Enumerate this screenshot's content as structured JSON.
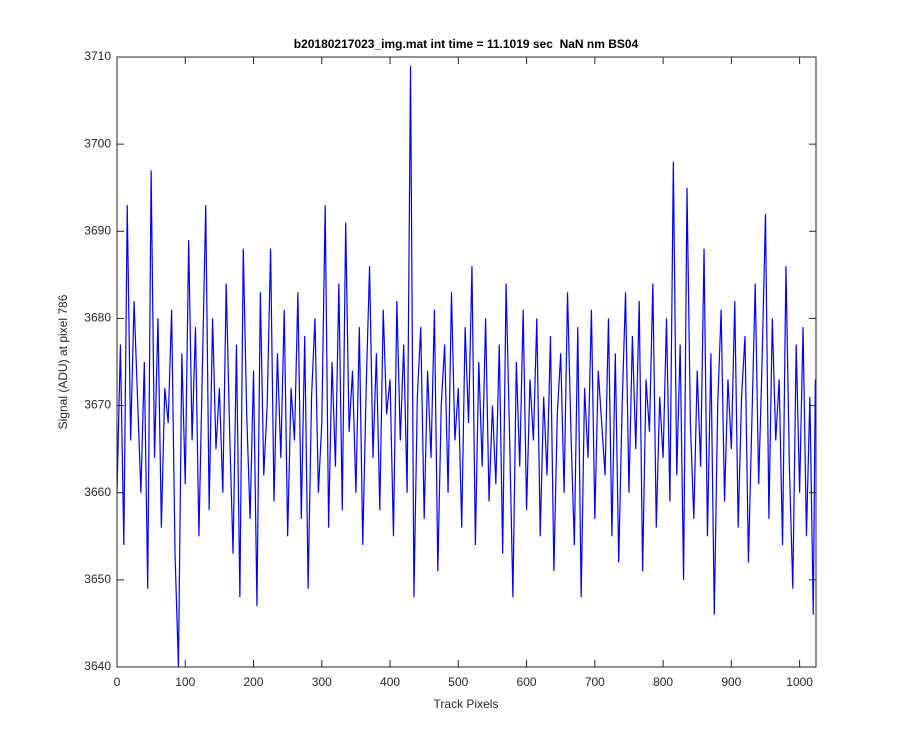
{
  "chart_data": {
    "type": "line",
    "title": "b20180217023_img.mat int time = 11.1019 sec  NaN nm BS04",
    "xlabel": "Track Pixels",
    "ylabel": "Signal (ADU) at pixel 786",
    "x": [
      0,
      5,
      10,
      15,
      20,
      25,
      30,
      35,
      40,
      45,
      50,
      55,
      60,
      65,
      70,
      75,
      80,
      85,
      90,
      95,
      100,
      105,
      110,
      115,
      120,
      125,
      130,
      135,
      140,
      145,
      150,
      155,
      160,
      165,
      170,
      175,
      180,
      185,
      190,
      195,
      200,
      205,
      210,
      215,
      220,
      225,
      230,
      235,
      240,
      245,
      250,
      255,
      260,
      265,
      270,
      275,
      280,
      285,
      290,
      295,
      300,
      305,
      310,
      315,
      320,
      325,
      330,
      335,
      340,
      345,
      350,
      355,
      360,
      365,
      370,
      375,
      380,
      385,
      390,
      395,
      400,
      405,
      410,
      415,
      420,
      425,
      430,
      435,
      440,
      445,
      450,
      455,
      460,
      465,
      470,
      475,
      480,
      485,
      490,
      495,
      500,
      505,
      510,
      515,
      520,
      525,
      530,
      535,
      540,
      545,
      550,
      555,
      560,
      565,
      570,
      575,
      580,
      585,
      590,
      595,
      600,
      605,
      610,
      615,
      620,
      625,
      630,
      635,
      640,
      645,
      650,
      655,
      660,
      665,
      670,
      675,
      680,
      685,
      690,
      695,
      700,
      705,
      710,
      715,
      720,
      725,
      730,
      735,
      740,
      745,
      750,
      755,
      760,
      765,
      770,
      775,
      780,
      785,
      790,
      795,
      800,
      805,
      810,
      815,
      820,
      825,
      830,
      835,
      840,
      845,
      850,
      855,
      860,
      865,
      870,
      875,
      880,
      885,
      890,
      895,
      900,
      905,
      910,
      915,
      920,
      925,
      930,
      935,
      940,
      945,
      950,
      955,
      960,
      965,
      970,
      975,
      980,
      985,
      990,
      995,
      1000,
      1005,
      1010,
      1015,
      1020,
      1023
    ],
    "series": [
      {
        "color": "#0000ff",
        "values": [
          3660,
          3677,
          3654,
          3693,
          3666,
          3682,
          3671,
          3660,
          3675,
          3649,
          3697,
          3664,
          3680,
          3656,
          3672,
          3668,
          3681,
          3653,
          3640,
          3676,
          3661,
          3689,
          3666,
          3679,
          3655,
          3674,
          3693,
          3658,
          3680,
          3665,
          3672,
          3660,
          3684,
          3667,
          3653,
          3677,
          3648,
          3688,
          3669,
          3657,
          3674,
          3647,
          3683,
          3662,
          3670,
          3688,
          3659,
          3676,
          3664,
          3681,
          3655,
          3672,
          3666,
          3683,
          3657,
          3678,
          3649,
          3671,
          3680,
          3660,
          3668,
          3693,
          3656,
          3675,
          3663,
          3684,
          3658,
          3691,
          3667,
          3674,
          3660,
          3679,
          3654,
          3672,
          3686,
          3664,
          3676,
          3658,
          3681,
          3669,
          3673,
          3655,
          3682,
          3666,
          3677,
          3660,
          3709,
          3648,
          3671,
          3679,
          3657,
          3674,
          3664,
          3681,
          3651,
          3670,
          3677,
          3660,
          3683,
          3666,
          3672,
          3656,
          3679,
          3668,
          3686,
          3654,
          3675,
          3663,
          3680,
          3659,
          3670,
          3661,
          3677,
          3653,
          3684,
          3667,
          3648,
          3675,
          3663,
          3681,
          3658,
          3673,
          3666,
          3680,
          3655,
          3671,
          3662,
          3678,
          3651,
          3669,
          3676,
          3660,
          3683,
          3667,
          3654,
          3679,
          3648,
          3672,
          3664,
          3681,
          3657,
          3674,
          3668,
          3662,
          3680,
          3655,
          3676,
          3652,
          3670,
          3683,
          3660,
          3678,
          3665,
          3682,
          3651,
          3673,
          3667,
          3684,
          3656,
          3671,
          3664,
          3680,
          3659,
          3698,
          3662,
          3677,
          3650,
          3695,
          3668,
          3657,
          3674,
          3663,
          3688,
          3655,
          3676,
          3646,
          3670,
          3681,
          3659,
          3673,
          3665,
          3682,
          3656,
          3671,
          3678,
          3652,
          3668,
          3684,
          3661,
          3675,
          3692,
          3657,
          3680,
          3666,
          3673,
          3654,
          3686,
          3663,
          3649,
          3677,
          3660,
          3679,
          3655,
          3671,
          3646,
          3673
        ]
      }
    ],
    "xlim": [
      0,
      1024
    ],
    "xticks": [
      0,
      100,
      200,
      300,
      400,
      500,
      600,
      700,
      800,
      900,
      1000
    ],
    "ylim": [
      3640,
      3710
    ],
    "yticks": [
      3640,
      3650,
      3660,
      3670,
      3680,
      3690,
      3700,
      3710
    ],
    "grid": false
  }
}
